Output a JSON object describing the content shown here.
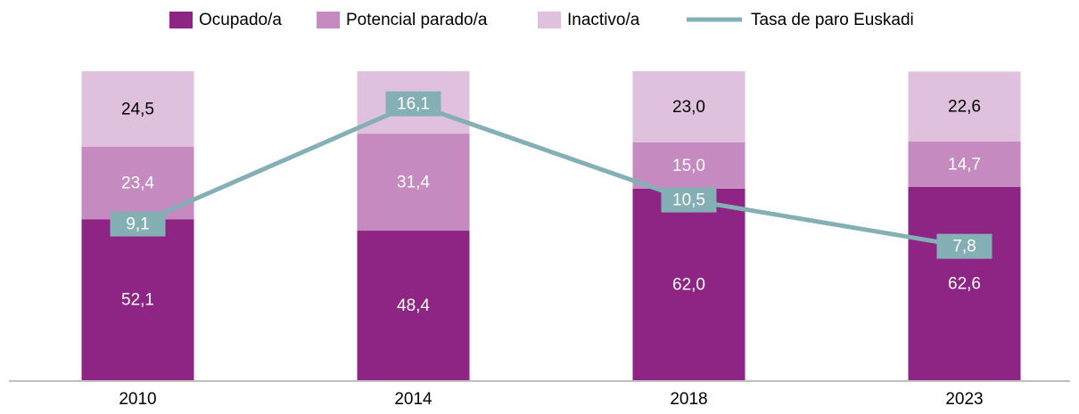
{
  "chart_data": {
    "type": "bar",
    "stacked": true,
    "categories": [
      "2010",
      "2014",
      "2018",
      "2023"
    ],
    "ylim": [
      0,
      100
    ],
    "y2lim": [
      0,
      18
    ],
    "series": [
      {
        "name": "Ocupado/a",
        "color": "#8e2585",
        "values": [
          52.1,
          48.4,
          62.0,
          62.6
        ],
        "value_labels": [
          "52,1",
          "48,4",
          "62,0",
          "62,6"
        ],
        "label_color": "#ffffff"
      },
      {
        "name": "Potencial parado/a",
        "color": "#c58ac0",
        "values": [
          23.4,
          31.4,
          15.0,
          14.7
        ],
        "value_labels": [
          "23,4",
          "31,4",
          "15,0",
          "14,7"
        ],
        "label_color": "#ffffff"
      },
      {
        "name": "Inactivo/a",
        "color": "#dfc1de",
        "values": [
          24.5,
          20.2,
          23.0,
          22.6
        ],
        "value_labels": [
          "24,5",
          "20,2",
          "23,0",
          "22,6"
        ],
        "label_color": "#000000"
      },
      {
        "name": "Tasa de paro Euskadi",
        "type": "line",
        "axis": "y2",
        "color": "#84b0b5",
        "values": [
          9.1,
          16.1,
          10.5,
          7.8
        ],
        "value_labels": [
          "9,1",
          "16,1",
          "10,5",
          "7,8"
        ],
        "label_color": "#ffffff"
      }
    ]
  }
}
